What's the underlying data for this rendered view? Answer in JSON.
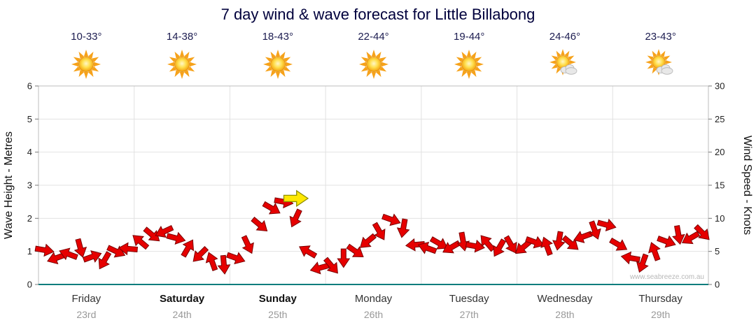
{
  "title": "7 day wind & wave forecast for Little Billabong",
  "watermark": "www.seabreeze.com.au",
  "chart_data": {
    "type": "scatter",
    "subtype": "wind-arrow-time-series",
    "title": "7 day wind & wave forecast for Little Billabong",
    "left_axis": {
      "label": "Wave Height - Metres",
      "min": 0,
      "max": 6,
      "ticks": [
        0,
        1,
        2,
        3,
        4,
        5,
        6
      ]
    },
    "right_axis": {
      "label": "Wind Speed - Knots",
      "min": 0,
      "max": 30,
      "ticks": [
        0,
        5,
        10,
        15,
        20,
        25,
        30
      ]
    },
    "grid": true,
    "days": [
      {
        "name": "Friday",
        "date": "23rd",
        "temp": "10-33°",
        "icon": "sunny",
        "weekend": false
      },
      {
        "name": "Saturday",
        "date": "24th",
        "temp": "14-38°",
        "icon": "sunny",
        "weekend": true
      },
      {
        "name": "Sunday",
        "date": "25th",
        "temp": "18-43°",
        "icon": "sunny",
        "weekend": true
      },
      {
        "name": "Monday",
        "date": "26th",
        "temp": "22-44°",
        "icon": "sunny",
        "weekend": false
      },
      {
        "name": "Tuesday",
        "date": "27th",
        "temp": "19-44°",
        "icon": "sunny",
        "weekend": false
      },
      {
        "name": "Wednesday",
        "date": "28th",
        "temp": "24-46°",
        "icon": "partly-cloudy",
        "weekend": false
      },
      {
        "name": "Thursday",
        "date": "29th",
        "temp": "23-43°",
        "icon": "partly-cloudy",
        "weekend": false
      }
    ],
    "points_per_day": 8,
    "wind_speed_knots": [
      5.2,
      4.0,
      4.6,
      5.5,
      4.2,
      3.6,
      5.0,
      5.4,
      6.5,
      7.5,
      8.0,
      7.0,
      5.5,
      4.5,
      3.5,
      3.0,
      4.0,
      6.0,
      9.0,
      11.5,
      12.5,
      10.0,
      5.0,
      2.5,
      2.8,
      4.0,
      5.0,
      6.5,
      8.0,
      9.8,
      8.5,
      6.0,
      5.5,
      6.2,
      5.6,
      6.5,
      5.8,
      6.3,
      5.5,
      6.0,
      5.6,
      6.4,
      5.8,
      6.6,
      6.2,
      7.2,
      8.2,
      9.0,
      6.0,
      4.0,
      3.2,
      5.0,
      6.5,
      7.5,
      7.0,
      7.8
    ],
    "wind_dir_deg": [
      10,
      160,
      200,
      75,
      340,
      120,
      25,
      185,
      220,
      40,
      155,
      15,
      300,
      135,
      250,
      85,
      20,
      65,
      40,
      30,
      10,
      115,
      210,
      165,
      50,
      90,
      35,
      140,
      60,
      20,
      100,
      175,
      200,
      30,
      150,
      80,
      10,
      230,
      120,
      60,
      140,
      20,
      250,
      100,
      40,
      160,
      70,
      15,
      30,
      190,
      110,
      250,
      20,
      80,
      150,
      45
    ],
    "peak_marker": {
      "speed_knots": 13,
      "dir_deg": 0,
      "index": 21,
      "color": "#ffe800"
    },
    "colors": {
      "arrow_red": "#e60000",
      "arrow_outline": "#7a0000",
      "peak_yellow": "#ffe800",
      "peak_outline": "#8f8f00",
      "baseline_teal": "#0e7d7d",
      "grid": "#e2e2e2",
      "frame": "#bdbdbd",
      "title_text": "#00003c"
    }
  }
}
